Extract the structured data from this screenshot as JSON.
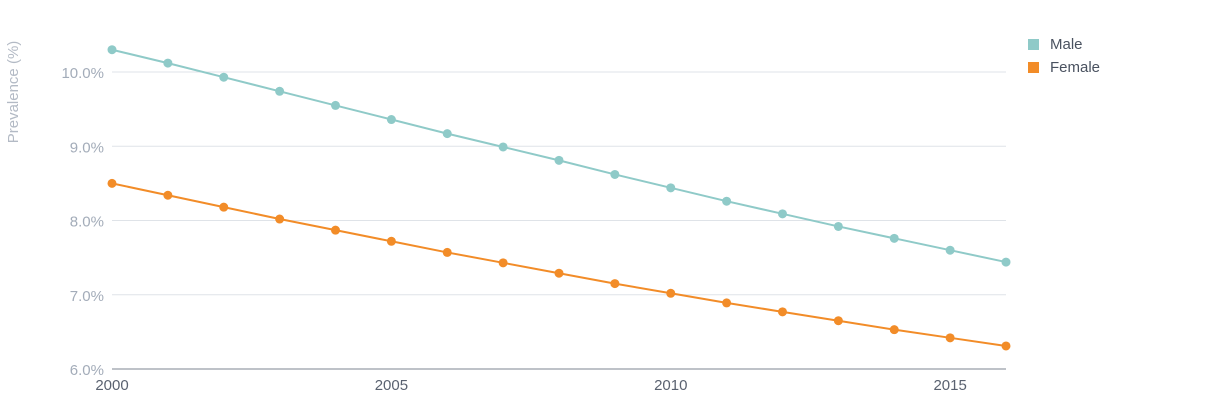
{
  "chart_data": {
    "type": "line",
    "x": [
      2000,
      2001,
      2002,
      2003,
      2004,
      2005,
      2006,
      2007,
      2008,
      2009,
      2010,
      2011,
      2012,
      2013,
      2014,
      2015,
      2016
    ],
    "series": [
      {
        "name": "Male",
        "color": "#8fcac8",
        "values": [
          10.3,
          10.12,
          9.93,
          9.74,
          9.55,
          9.36,
          9.17,
          8.99,
          8.81,
          8.62,
          8.44,
          8.26,
          8.09,
          7.92,
          7.76,
          7.6,
          7.44
        ]
      },
      {
        "name": "Female",
        "color": "#f28c28",
        "values": [
          8.5,
          8.34,
          8.18,
          8.02,
          7.87,
          7.72,
          7.57,
          7.43,
          7.29,
          7.15,
          7.02,
          6.89,
          6.77,
          6.65,
          6.53,
          6.42,
          6.31
        ]
      }
    ],
    "xticks": [
      2000,
      2005,
      2010,
      2015
    ],
    "xtick_labels": [
      "2000",
      "2005",
      "2010",
      "2015"
    ],
    "yticks": [
      6.0,
      7.0,
      8.0,
      9.0,
      10.0
    ],
    "ytick_labels": [
      "6.0%",
      "7.0%",
      "8.0%",
      "9.0%",
      "10.0%"
    ],
    "ylabel": "Prevalence (%)",
    "xlabel": "",
    "xlim": [
      2000,
      2016
    ],
    "ylim": [
      6.0,
      10.6
    ],
    "grid": true,
    "legend_position": "top-right"
  }
}
